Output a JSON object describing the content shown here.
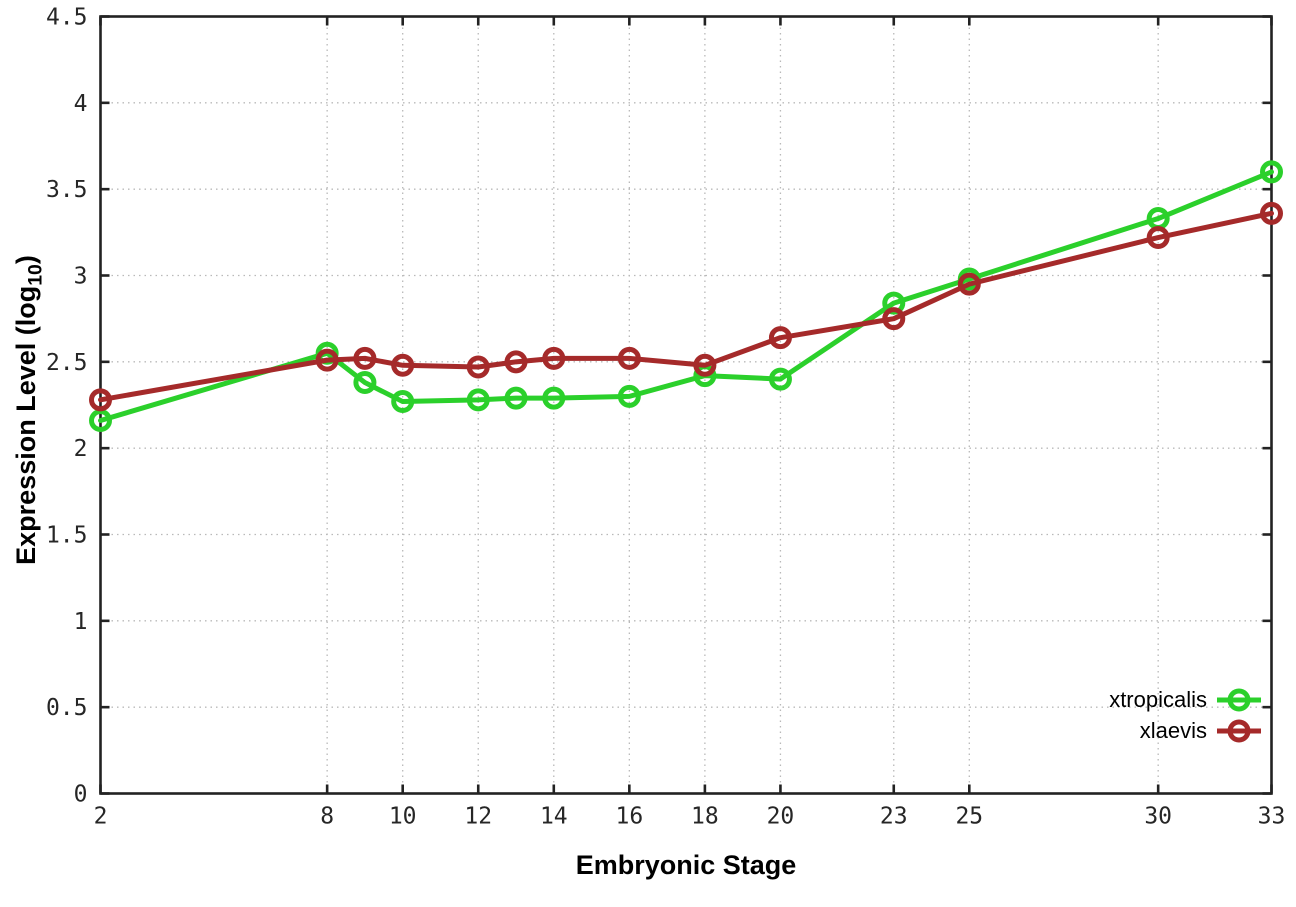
{
  "chart_data": {
    "type": "line",
    "title": "",
    "xlabel": "Embryonic Stage",
    "ylabel": "Expression Level (log10)",
    "ylabel_parts": {
      "main": "Expression Level (log",
      "sub": "10",
      "close": ")"
    },
    "xlim": [
      2,
      33
    ],
    "ylim": [
      0,
      4.5
    ],
    "xticks": [
      2,
      8,
      10,
      12,
      14,
      16,
      18,
      20,
      23,
      25,
      30,
      33
    ],
    "xtick_labels": [
      "2",
      "8",
      "10",
      "12",
      "14",
      "16",
      "18",
      "20",
      "23",
      "25",
      "30",
      "33"
    ],
    "yticks": [
      0,
      0.5,
      1,
      1.5,
      2,
      2.5,
      3,
      3.5,
      4,
      4.5
    ],
    "ytick_labels": [
      "0",
      "0.5",
      "1",
      "1.5",
      "2",
      "2.5",
      "3",
      "3.5",
      "4",
      "4.5"
    ],
    "grid": true,
    "grid_style": "dotted",
    "legend_position": "bottom-right",
    "x": [
      2,
      8,
      9,
      10,
      12,
      13,
      14,
      16,
      18,
      20,
      23,
      25,
      30,
      33
    ],
    "series": [
      {
        "name": "xtropicalis",
        "color": "#2bd02b",
        "marker": "open-circle",
        "values": [
          2.16,
          2.55,
          2.38,
          2.27,
          2.28,
          2.29,
          2.29,
          2.3,
          2.42,
          2.4,
          2.84,
          2.98,
          3.33,
          3.6
        ]
      },
      {
        "name": "xlaevis",
        "color": "#a52a2a",
        "marker": "open-circle",
        "values": [
          2.28,
          2.51,
          2.52,
          2.48,
          2.47,
          2.5,
          2.52,
          2.52,
          2.48,
          2.64,
          2.75,
          2.95,
          3.22,
          3.36
        ]
      }
    ],
    "colors": {
      "axis": "#222222",
      "grid": "#b9b9b9",
      "tick_text": "#262626",
      "title_text": "#000000",
      "background": "#ffffff"
    }
  }
}
